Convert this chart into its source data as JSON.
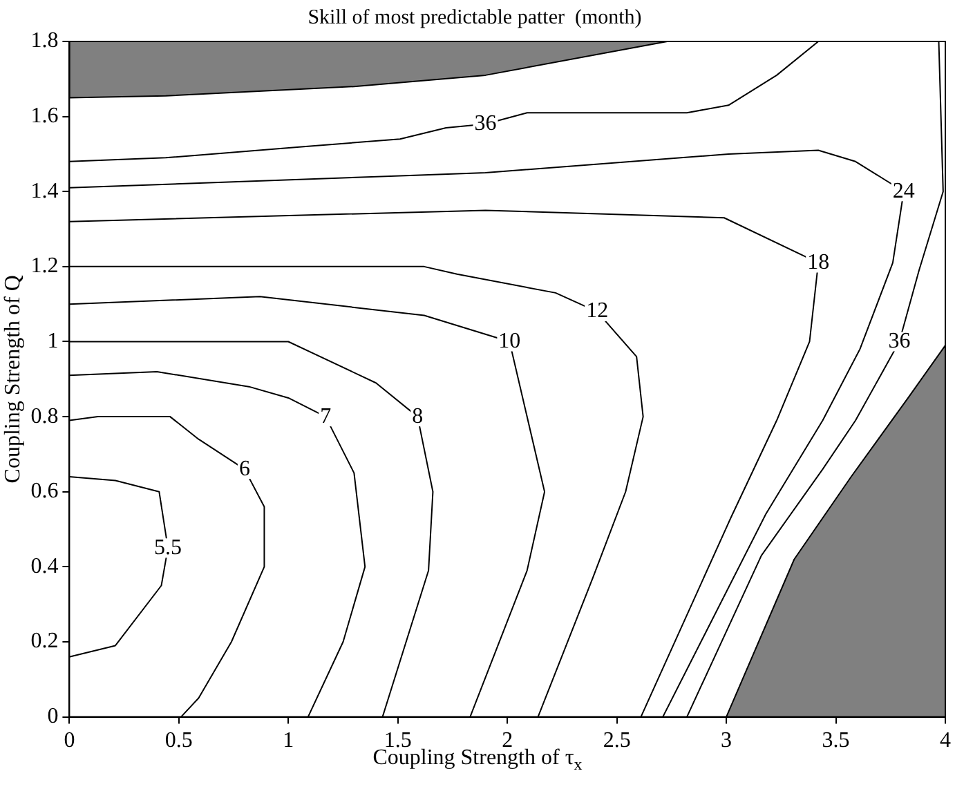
{
  "chart_data": {
    "type": "line",
    "title": "Skill of most predictable patter  (month)",
    "xlabel": "Coupling Strength of τ$_{x}$",
    "ylabel": "Coupling Strength of Q",
    "xlim": [
      0,
      4
    ],
    "ylim": [
      0,
      1.8
    ],
    "xticks": [
      0,
      0.5,
      1,
      1.5,
      2,
      2.5,
      3,
      3.5,
      4
    ],
    "yticks": [
      0,
      0.2,
      0.4,
      0.6,
      0.8,
      1,
      1.2,
      1.4,
      1.6,
      1.8
    ],
    "grid": false,
    "legend": false,
    "marker": "none",
    "series": [
      {
        "type": "area",
        "color": "#808080",
        "x": [
          0,
          0,
          0.44,
          1.3,
          1.9,
          2.73
        ],
        "values": [
          1.8,
          1.65,
          1.655,
          1.68,
          1.71,
          1.8
        ]
      },
      {
        "type": "area",
        "color": "#808080",
        "x": [
          3.0,
          3.31,
          3.57,
          3.83,
          4.0,
          4.0
        ],
        "values": [
          0,
          0.42,
          0.64,
          0.85,
          0.99,
          0
        ]
      },
      {
        "name": "5.5",
        "color": "#000000",
        "x": [
          0,
          0.21,
          0.41,
          0.45,
          0.42,
          0.21,
          0
        ],
        "values": [
          0.64,
          0.63,
          0.6,
          0.45,
          0.35,
          0.19,
          0.16
        ]
      },
      {
        "name": "6",
        "color": "#000000",
        "x": [
          0,
          0.13,
          0.46,
          0.59,
          0.8,
          0.89,
          0.89,
          0.74,
          0.59,
          0.51
        ],
        "values": [
          0.79,
          0.8,
          0.8,
          0.74,
          0.66,
          0.56,
          0.4,
          0.2,
          0.05,
          0
        ]
      },
      {
        "name": "7",
        "color": "#000000",
        "x": [
          0,
          0.4,
          0.82,
          1.0,
          1.17,
          1.3,
          1.35,
          1.25,
          1.09
        ],
        "values": [
          0.91,
          0.92,
          0.88,
          0.85,
          0.8,
          0.65,
          0.4,
          0.2,
          0
        ]
      },
      {
        "name": "8",
        "color": "#000000",
        "x": [
          0,
          1.0,
          1.4,
          1.59,
          1.66,
          1.64,
          1.43
        ],
        "values": [
          1.0,
          1.0,
          0.89,
          0.8,
          0.6,
          0.39,
          0
        ]
      },
      {
        "name": "10",
        "color": "#000000",
        "x": [
          0,
          0.87,
          1.62,
          2.01,
          2.17,
          2.09,
          1.83
        ],
        "values": [
          1.1,
          1.12,
          1.07,
          1.0,
          0.6,
          0.39,
          0
        ]
      },
      {
        "name": "12",
        "color": "#000000",
        "x": [
          0,
          1.62,
          1.77,
          2.22,
          2.41,
          2.59,
          2.62,
          2.54,
          2.39,
          2.14
        ],
        "values": [
          1.2,
          1.2,
          1.18,
          1.13,
          1.08,
          0.96,
          0.8,
          0.6,
          0.37,
          0
        ]
      },
      {
        "name": "18",
        "color": "#000000",
        "x": [
          0,
          1.9,
          2.99,
          3.42,
          3.38,
          3.23,
          3.02,
          2.61
        ],
        "values": [
          1.32,
          1.35,
          1.33,
          1.21,
          1.0,
          0.79,
          0.53,
          0
        ]
      },
      {
        "name": "24",
        "color": "#000000",
        "x": [
          0,
          1.9,
          3.01,
          3.42,
          3.59,
          3.81,
          3.76,
          3.61,
          3.44,
          3.18,
          2.71
        ],
        "values": [
          1.41,
          1.45,
          1.5,
          1.51,
          1.48,
          1.4,
          1.21,
          0.98,
          0.79,
          0.54,
          0
        ]
      },
      {
        "name": "36",
        "color": "#000000",
        "x": [
          0,
          0.44,
          1.08,
          1.51,
          1.72,
          1.9,
          2.09,
          2.82,
          3.01,
          3.23,
          3.42
        ],
        "values": [
          1.48,
          1.49,
          1.52,
          1.54,
          1.57,
          1.58,
          1.61,
          1.61,
          1.63,
          1.71,
          1.8
        ]
      },
      {
        "name": "36",
        "color": "#000000",
        "x": [
          3.97,
          3.99,
          3.88,
          3.79,
          3.59,
          3.44,
          3.16,
          2.82
        ],
        "values": [
          1.8,
          1.4,
          1.19,
          1.0,
          0.79,
          0.66,
          0.43,
          0
        ]
      }
    ]
  }
}
